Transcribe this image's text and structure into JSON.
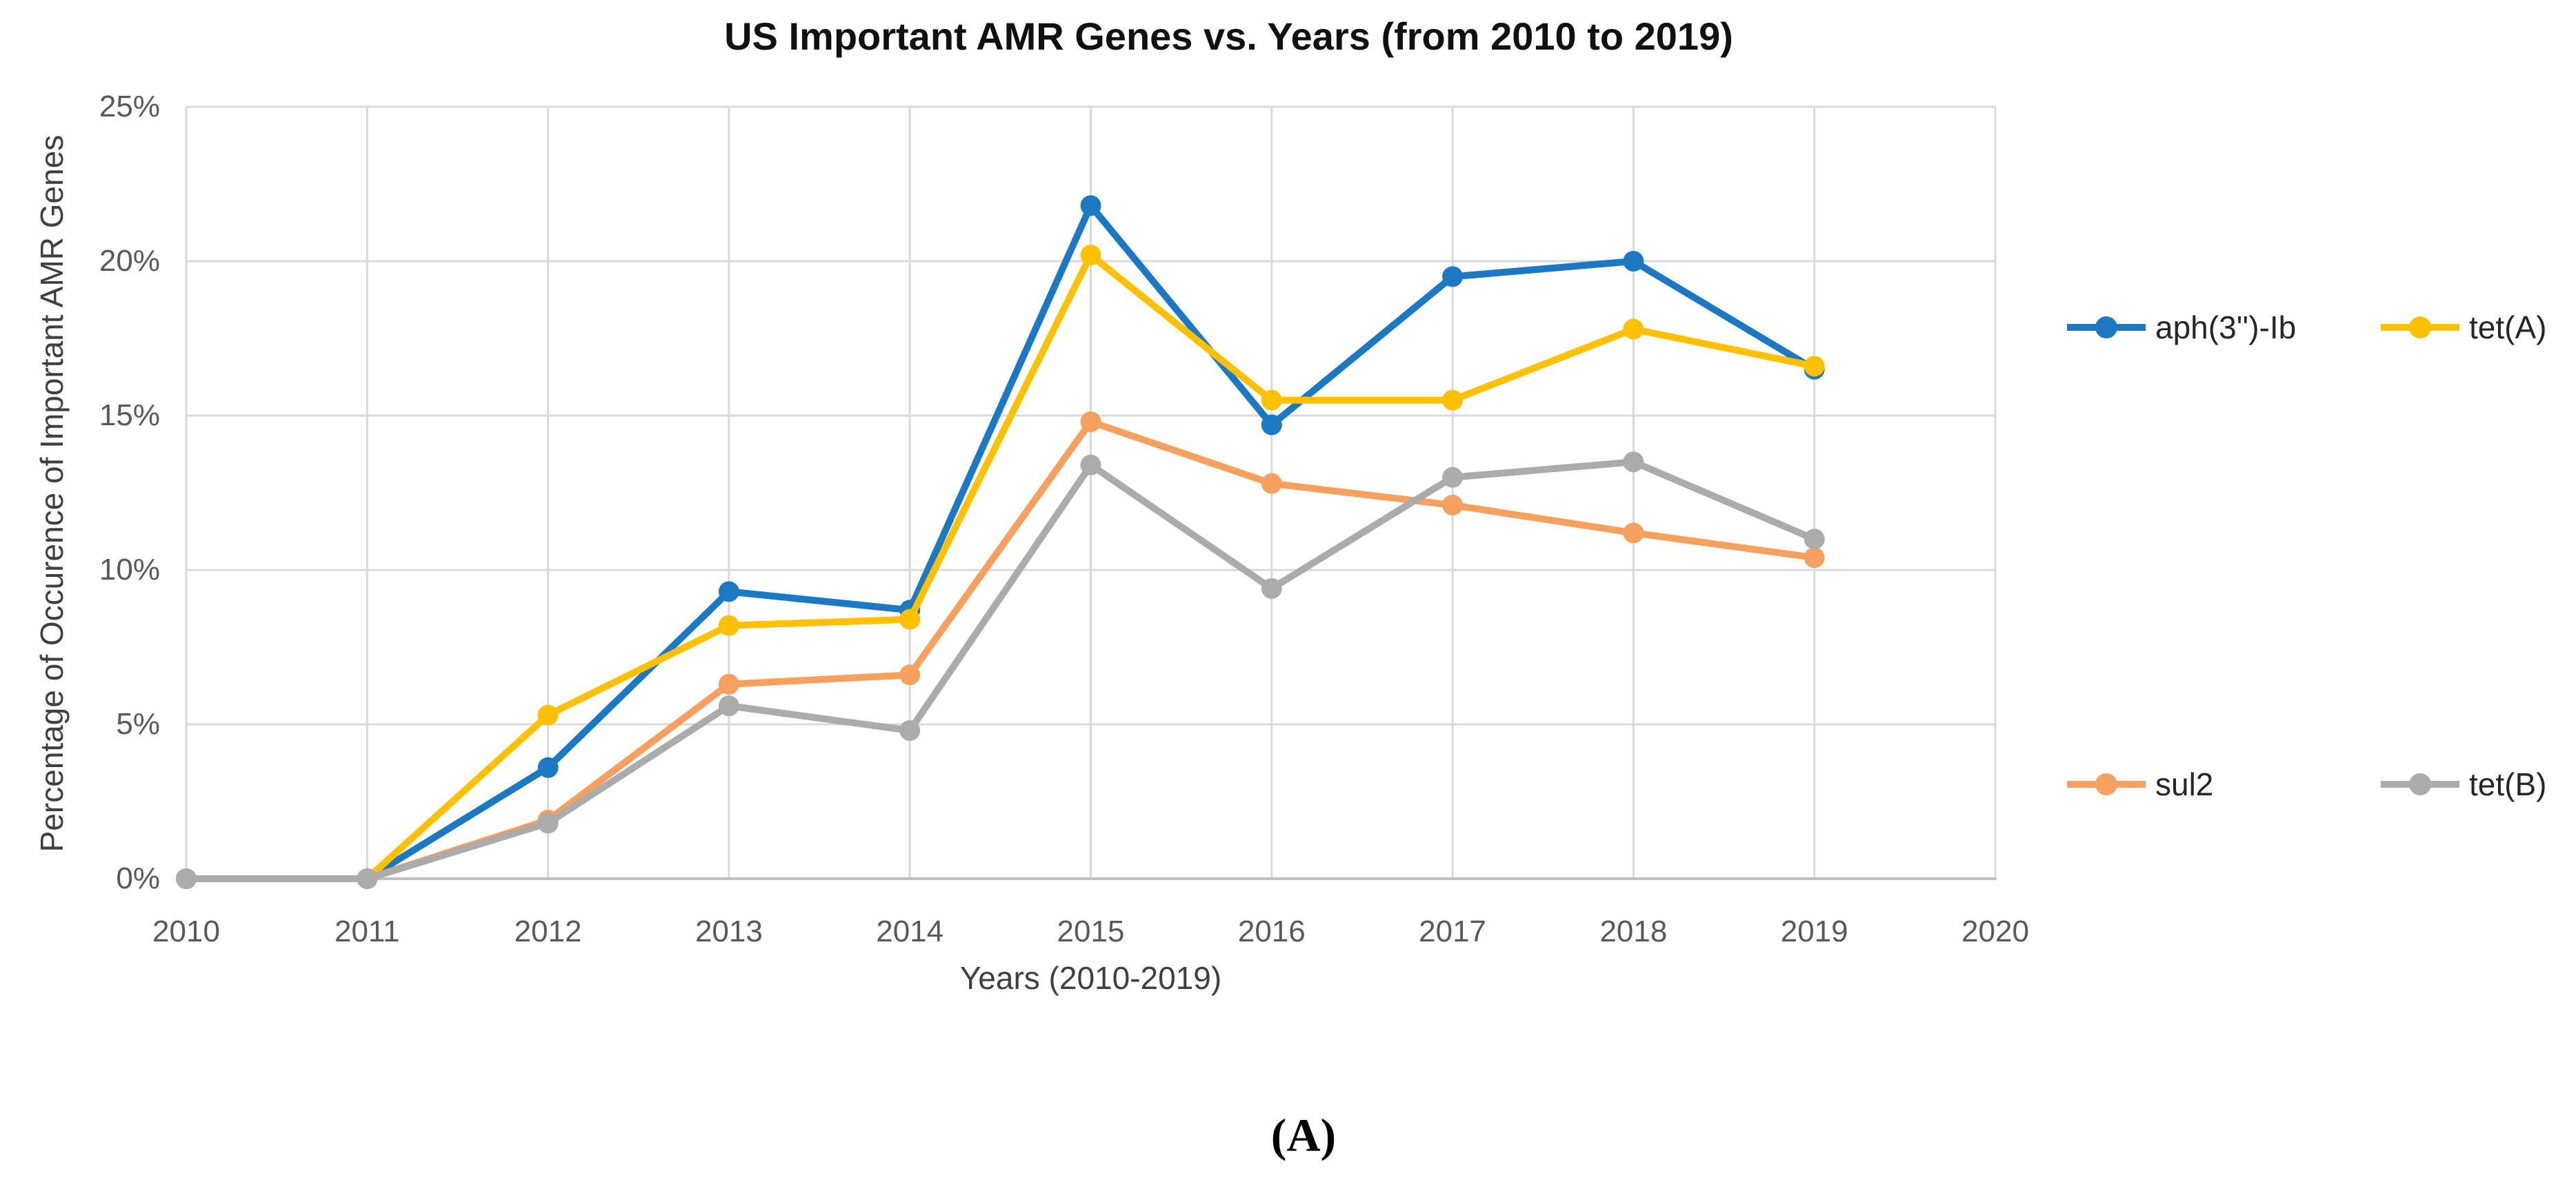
{
  "title": "US Important AMR Genes vs. Years (from 2010 to 2019)",
  "caption": "(A)",
  "colors": {
    "gridline": "#D9D9D9",
    "axis_line": "#BFBFBF",
    "tick_label": "#595959",
    "axis_title": "#3F3F3F",
    "title_text": "#111111"
  },
  "chart_data": {
    "type": "line",
    "title": "US Important AMR Genes vs. Years (from 2010 to 2019)",
    "xlabel": "Years (2010-2019)",
    "ylabel": "Percentage of Occurence of Important AMR Genes",
    "x": [
      2010,
      2011,
      2012,
      2013,
      2014,
      2015,
      2016,
      2017,
      2018,
      2019
    ],
    "xlim": [
      2010,
      2020
    ],
    "ylim": [
      0,
      25
    ],
    "grid": true,
    "legend_position": "right",
    "x_tick_labels": [
      "2010",
      "2011",
      "2012",
      "2013",
      "2014",
      "2015",
      "2016",
      "2017",
      "2018",
      "2019",
      "2020"
    ],
    "y_tick_labels": [
      "0%",
      "5%",
      "10%",
      "15%",
      "20%",
      "25%"
    ],
    "y_tick_values": [
      0,
      5,
      10,
      15,
      20,
      25
    ],
    "series": [
      {
        "name": "aph(3'')-Ib",
        "color": "#1B78C2",
        "marker": "circle",
        "values": [
          0,
          0,
          3.6,
          9.3,
          8.7,
          21.8,
          14.7,
          19.5,
          20.0,
          16.5
        ]
      },
      {
        "name": "tet(A)",
        "color": "#FFC000",
        "marker": "circle",
        "values": [
          0,
          0,
          5.3,
          8.2,
          8.4,
          20.2,
          15.5,
          15.5,
          17.8,
          16.6
        ]
      },
      {
        "name": "sul2",
        "color": "#F5A05F",
        "marker": "circle",
        "values": [
          0,
          0,
          1.9,
          6.3,
          6.6,
          14.8,
          12.8,
          12.1,
          11.2,
          10.4
        ]
      },
      {
        "name": "tet(B)",
        "color": "#ABABAB",
        "marker": "circle",
        "values": [
          0,
          0,
          1.8,
          5.6,
          4.8,
          13.4,
          9.4,
          13.0,
          13.5,
          11.0
        ]
      }
    ]
  }
}
